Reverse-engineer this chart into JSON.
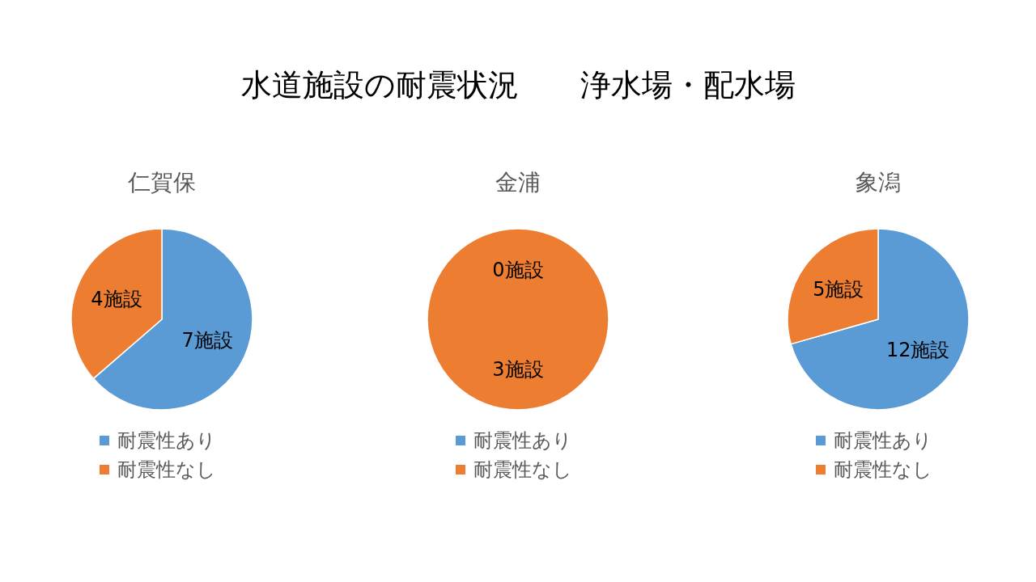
{
  "chart_data": [
    {
      "type": "other",
      "title": "水道施設の耐震状況　　浄水場・配水場"
    },
    {
      "type": "pie",
      "title": "仁賀保",
      "categories": [
        "耐震性あり",
        "耐震性なし"
      ],
      "values": [
        7,
        4
      ],
      "colors": [
        "#5b9bd5",
        "#ed7d31"
      ],
      "value_labels": [
        "7施設",
        "4施設"
      ],
      "legend": "bottom"
    },
    {
      "type": "pie",
      "title": "金浦",
      "categories": [
        "耐震性あり",
        "耐震性なし"
      ],
      "values": [
        0,
        3
      ],
      "colors": [
        "#5b9bd5",
        "#ed7d31"
      ],
      "value_labels": [
        "0施設",
        "3施設"
      ],
      "legend": "bottom"
    },
    {
      "type": "pie",
      "title": "象潟",
      "categories": [
        "耐震性あり",
        "耐震性なし"
      ],
      "values": [
        12,
        5
      ],
      "colors": [
        "#5b9bd5",
        "#ed7d31"
      ],
      "value_labels": [
        "12施設",
        "5施設"
      ],
      "legend": "bottom"
    }
  ]
}
